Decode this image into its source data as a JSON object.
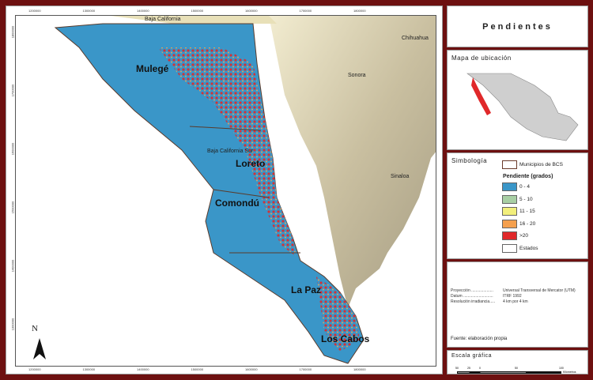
{
  "title": "Pendientes",
  "map": {
    "x_ticks": [
      "1200000",
      "1300000",
      "1400000",
      "1500000",
      "1600000",
      "1700000",
      "1800000"
    ],
    "y_ticks": [
      "1800000",
      "1700000",
      "1600000",
      "1500000",
      "1400000",
      "1300000"
    ],
    "municipalities": [
      "Mulegé",
      "Loreto",
      "Comondú",
      "La Paz",
      "Los Cabos"
    ],
    "states": [
      "Baja California",
      "Baja California Sur",
      "Sonora",
      "Chihuahua",
      "Sinaloa"
    ],
    "north_label": "N"
  },
  "location_map": {
    "title": "Mapa de ubicación"
  },
  "legend": {
    "title": "Simbología",
    "municipios_label": "Municipios de BCS",
    "pendiente_title": "Pendiente (grados)",
    "classes": [
      {
        "label": "0 - 4",
        "color": "#3a96c8"
      },
      {
        "label": "5 - 10",
        "color": "#a8cfa4"
      },
      {
        "label": "11 - 15",
        "color": "#f2ef7c"
      },
      {
        "label": "16 - 20",
        "color": "#f5a04e"
      },
      {
        "label": ">20",
        "color": "#e0282a"
      }
    ],
    "estados_label": "Estados"
  },
  "info": {
    "rows": [
      {
        "k": "Proyección ....................",
        "v": "Universal Transversal de Mercator (UTM)"
      },
      {
        "k": "Datum ...........................",
        "v": "ITRF 1992"
      },
      {
        "k": "Resolución irradiancia.....",
        "v": "4 km por 4 km"
      }
    ],
    "source": "Fuente: elaboración propia"
  },
  "scale": {
    "title": "Escala gráfica",
    "ticks": [
      "50",
      "25",
      "0",
      "50",
      "100"
    ],
    "unit": "Kilómetros"
  }
}
